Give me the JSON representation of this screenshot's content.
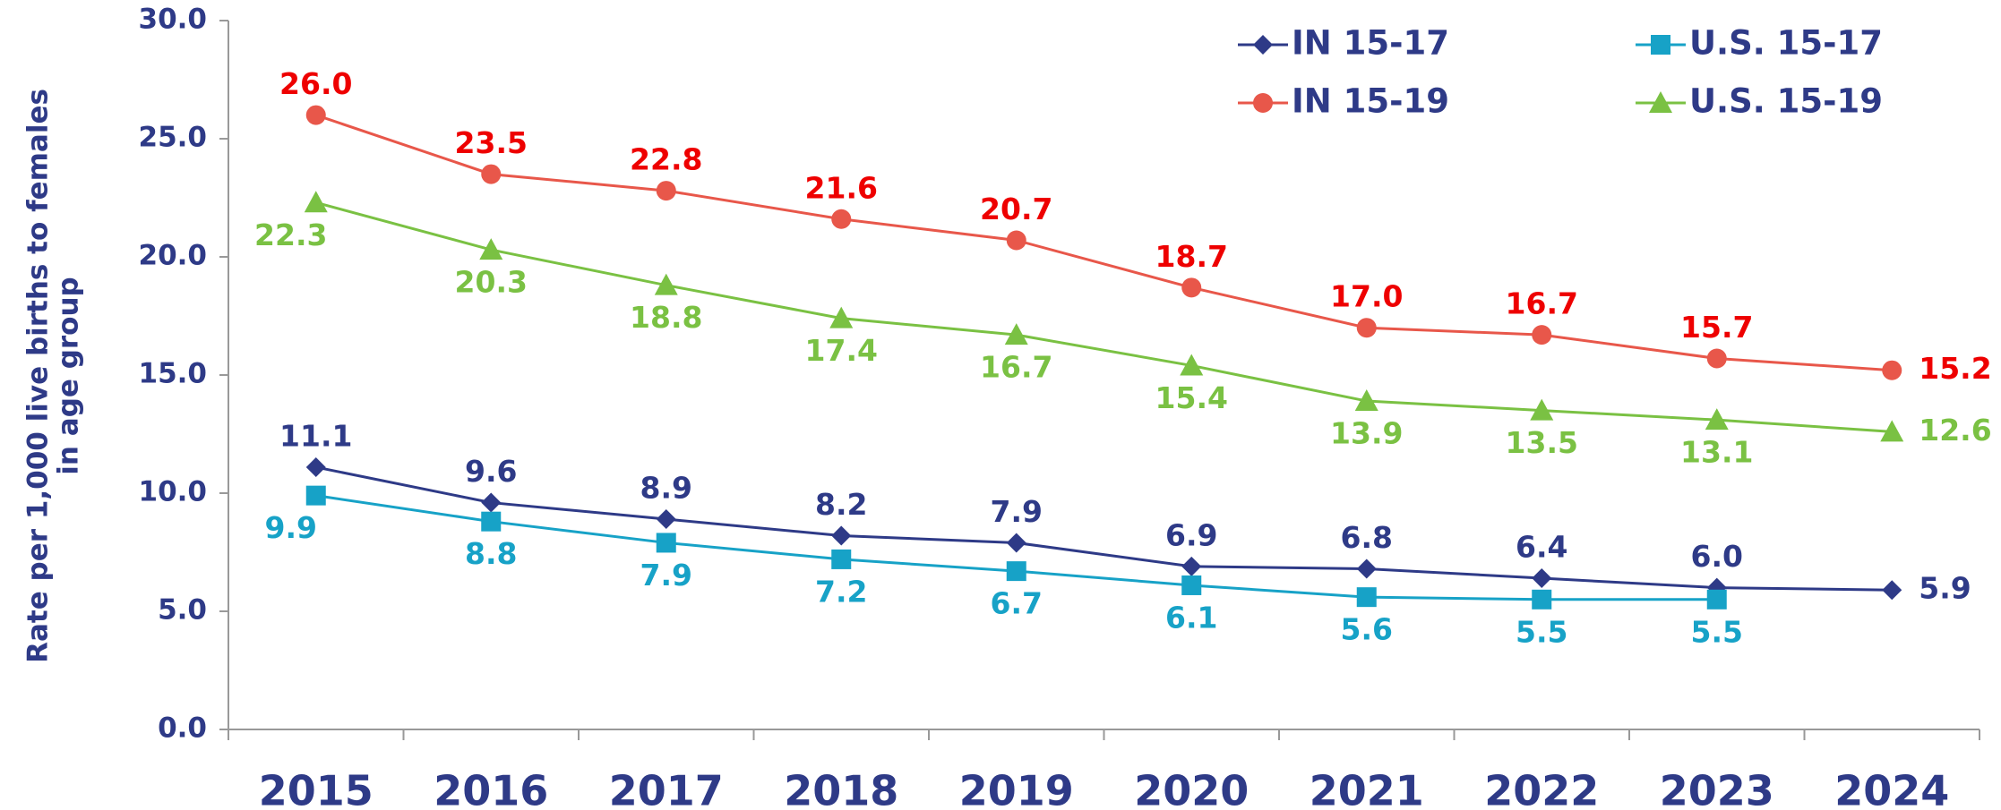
{
  "chart_data": {
    "type": "line",
    "y_label": [
      "Rate per 1,000 live births to females",
      "in age group"
    ],
    "categories": [
      "2015",
      "2016",
      "2017",
      "2018",
      "2019",
      "2020",
      "2021",
      "2022",
      "2023",
      "2024"
    ],
    "ylim": [
      0,
      30
    ],
    "yticks": [
      {
        "value": 0,
        "label": "0.0"
      },
      {
        "value": 5,
        "label": "5.0"
      },
      {
        "value": 10,
        "label": "10.0"
      },
      {
        "value": 15,
        "label": "15.0"
      },
      {
        "value": 20,
        "label": "20.0"
      },
      {
        "value": 25,
        "label": "25.0"
      },
      {
        "value": 30,
        "label": "30.0"
      }
    ],
    "series": [
      {
        "name": "IN 15-17",
        "color": "#2e3a87",
        "label_color": "#2e3a87",
        "marker": "diamond",
        "label_side": "above",
        "values": [
          11.1,
          9.6,
          8.9,
          8.2,
          7.9,
          6.9,
          6.8,
          6.4,
          6.0,
          5.9
        ],
        "value_labels": [
          "11.1",
          "9.6",
          "8.9",
          "8.2",
          "7.9",
          "6.9",
          "6.8",
          "6.4",
          "6.0",
          "5.9"
        ]
      },
      {
        "name": "U.S. 15-17",
        "color": "#17a2c7",
        "label_color": "#17a2c7",
        "marker": "square",
        "label_side": "below",
        "values": [
          9.9,
          8.8,
          7.9,
          7.2,
          6.7,
          6.1,
          5.6,
          5.5,
          5.5,
          null
        ],
        "value_labels": [
          "9.9",
          "8.8",
          "7.9",
          "7.2",
          "6.7",
          "6.1",
          "5.6",
          "5.5",
          "5.5",
          null
        ]
      },
      {
        "name": "IN 15-19",
        "color": "#e8574a",
        "label_color": "#ee0000",
        "marker": "circle",
        "label_side": "above",
        "values": [
          26.0,
          23.5,
          22.8,
          21.6,
          20.7,
          18.7,
          17.0,
          16.7,
          15.7,
          15.2
        ],
        "value_labels": [
          "26.0",
          "23.5",
          "22.8",
          "21.6",
          "20.7",
          "18.7",
          "17.0",
          "16.7",
          "15.7",
          "15.2"
        ]
      },
      {
        "name": "U.S. 15-19",
        "color": "#7ac143",
        "label_color": "#7ac143",
        "marker": "triangle",
        "label_side": "below",
        "values": [
          22.3,
          20.3,
          18.8,
          17.4,
          16.7,
          15.4,
          13.9,
          13.5,
          13.1,
          12.6
        ],
        "value_labels": [
          "22.3",
          "20.3",
          "18.8",
          "17.4",
          "16.7",
          "15.4",
          "13.9",
          "13.5",
          "13.1",
          "12.6"
        ]
      }
    ]
  }
}
